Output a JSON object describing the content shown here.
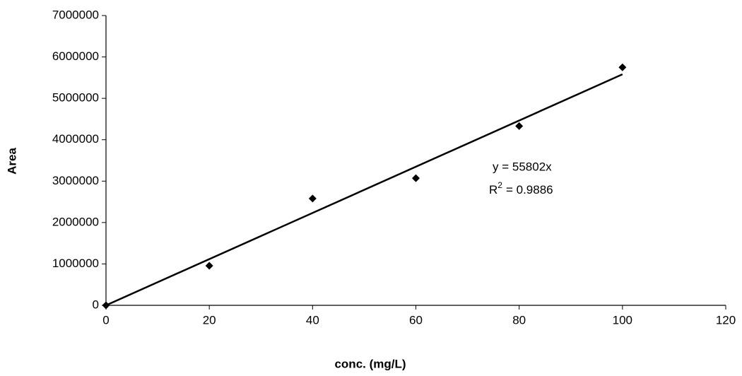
{
  "chart_data": {
    "type": "scatter",
    "x_label": "conc. (mg/L)",
    "y_label": "Area",
    "series": [
      {
        "color": "#000000",
        "x": [
          0,
          20,
          40,
          60,
          80,
          100
        ],
        "values": [
          0,
          956000,
          2580000,
          3070000,
          4330000,
          5750000
        ]
      }
    ],
    "trendline": {
      "color": "#000000",
      "x": [
        0,
        100
      ],
      "values": [
        0,
        5580200
      ]
    },
    "annotation": {
      "equation": "y = 55802x",
      "r2_base": "R",
      "r2_exponent": "2",
      "r2_value": "= 0.9886"
    },
    "xlim": [
      0,
      120
    ],
    "xticks": [
      0,
      20,
      40,
      60,
      80,
      100,
      120
    ],
    "ylim": [
      0,
      7000000
    ],
    "yticks": [
      0,
      1000000,
      2000000,
      3000000,
      4000000,
      5000000,
      6000000,
      7000000
    ],
    "grid": false
  }
}
